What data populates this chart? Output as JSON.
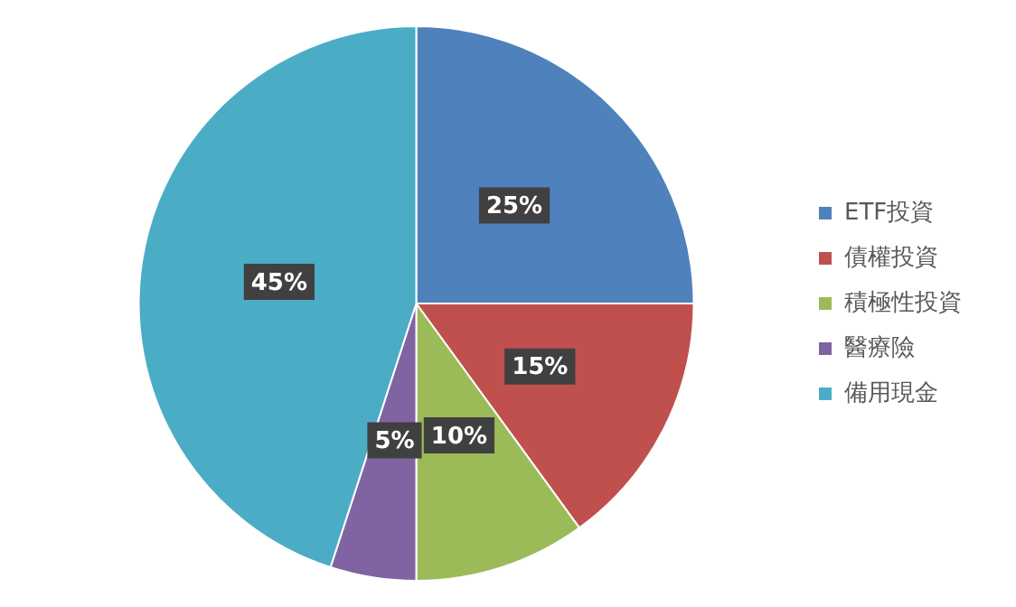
{
  "chart_data": {
    "type": "pie",
    "categories": [
      "ETF投資",
      "債權投資",
      "積極性投資",
      "醫療險",
      "備用現金"
    ],
    "values": [
      25,
      15,
      10,
      5,
      45
    ],
    "colors": [
      "#4f81bd",
      "#c0504d",
      "#9bbb59",
      "#8064a2",
      "#4bacc6"
    ],
    "value_labels": [
      "25%",
      "15%",
      "10%",
      "5%",
      "45%"
    ],
    "legend": "right"
  }
}
